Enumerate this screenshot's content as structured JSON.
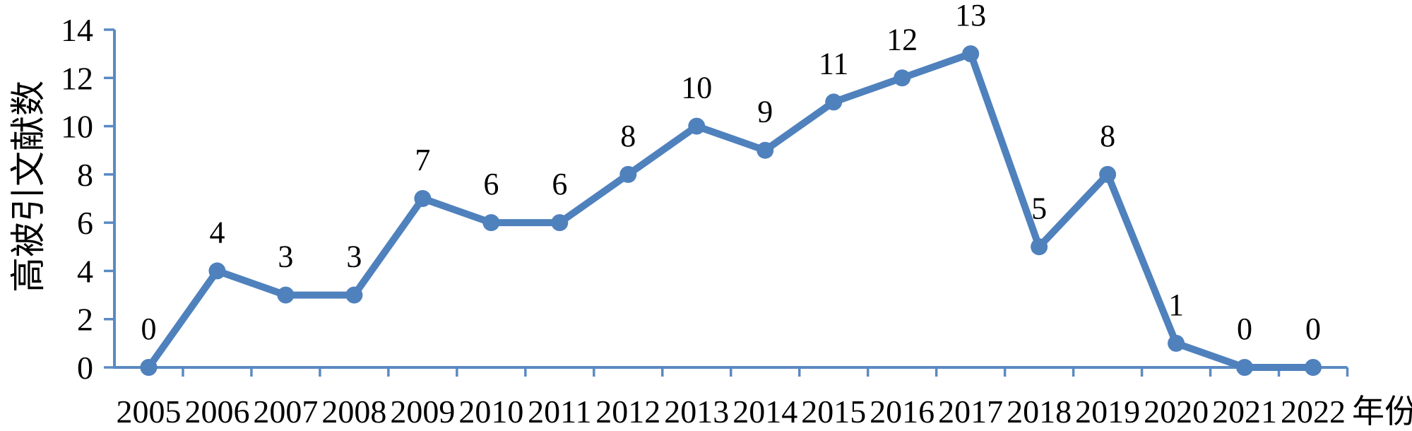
{
  "chart_data": {
    "type": "line",
    "title": "",
    "categories": [
      "2005",
      "2006",
      "2007",
      "2008",
      "2009",
      "2010",
      "2011",
      "2012",
      "2013",
      "2014",
      "2015",
      "2016",
      "2017",
      "2018",
      "2019",
      "2020",
      "2021",
      "2022"
    ],
    "values": [
      0,
      4,
      3,
      3,
      7,
      6,
      6,
      8,
      10,
      9,
      11,
      12,
      13,
      5,
      8,
      1,
      0,
      0
    ],
    "data_labels": [
      "0",
      "4",
      "3",
      "3",
      "7",
      "6",
      "6",
      "8",
      "10",
      "9",
      "11",
      "12",
      "13",
      "5",
      "8",
      "1",
      "0",
      "0"
    ],
    "xlabel": "年份",
    "ylabel": "高被引文献数",
    "ylim": [
      0,
      14
    ],
    "ytick_step": 2,
    "yticks": [
      "0",
      "2",
      "4",
      "6",
      "8",
      "10",
      "12",
      "14"
    ],
    "grid": false,
    "legend_position": "none",
    "line_color": "#4f81bd",
    "marker_color": "#4f81bd",
    "axis_color": "#5b8ac2",
    "text_color": "#000000",
    "marker": "circle"
  }
}
